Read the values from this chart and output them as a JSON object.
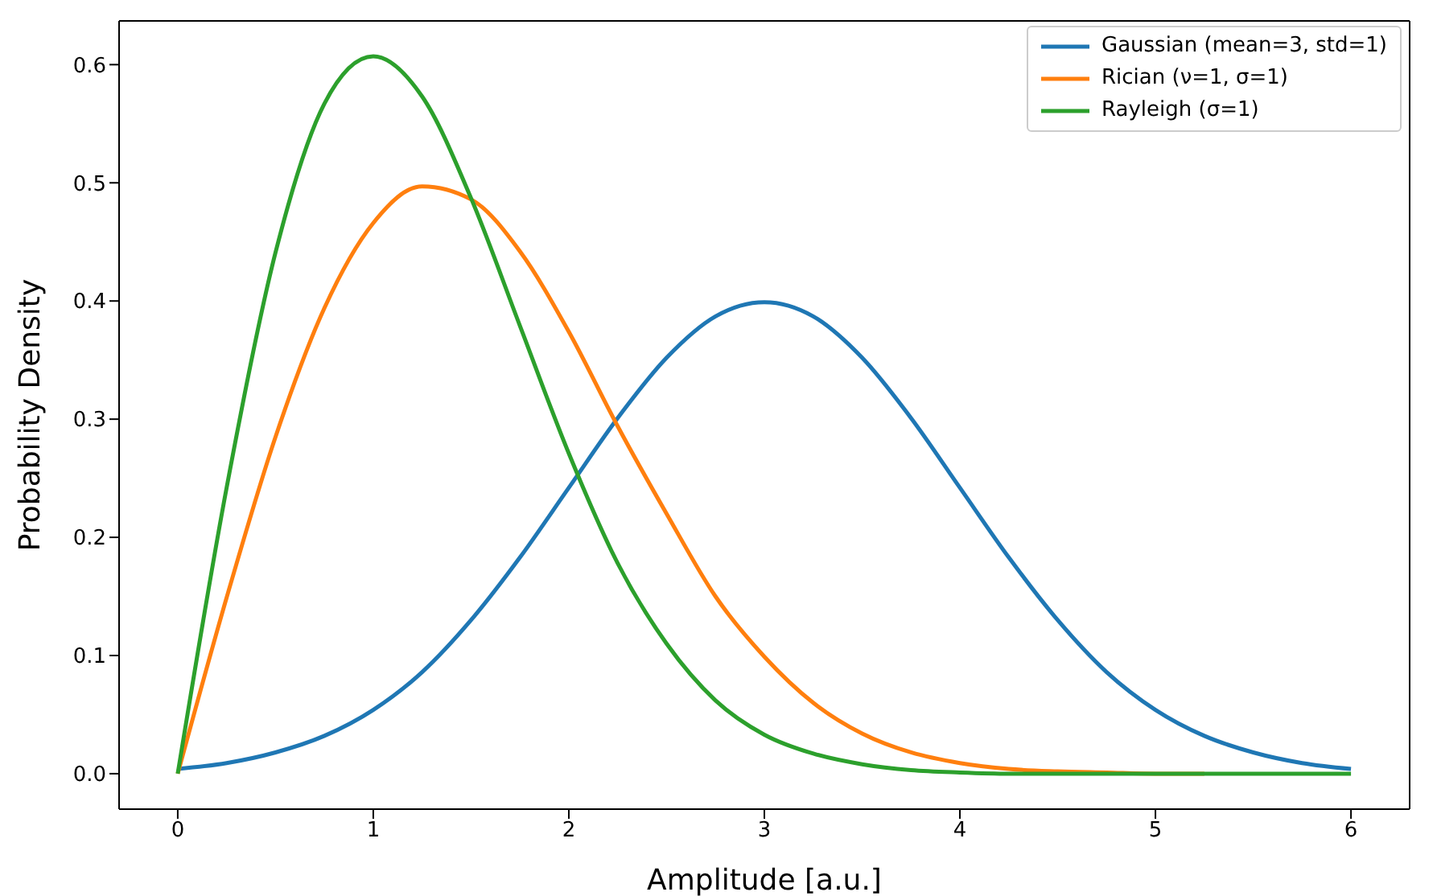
{
  "chart_data": {
    "type": "line",
    "xlabel": "Amplitude [a.u.]",
    "ylabel": "Probability Density",
    "x": [
      0,
      0.25,
      0.5,
      0.75,
      1,
      1.25,
      1.5,
      1.75,
      2,
      2.25,
      2.5,
      2.75,
      3,
      3.25,
      3.5,
      3.75,
      4,
      4.25,
      4.5,
      4.75,
      5,
      5.25,
      5.5,
      5.75,
      6
    ],
    "series": [
      {
        "name": "Gaussian (mean=3, std=1)",
        "color": "#1f77b4",
        "values": [
          0.004,
          0.009,
          0.018,
          0.032,
          0.054,
          0.086,
          0.13,
          0.183,
          0.242,
          0.301,
          0.352,
          0.387,
          0.399,
          0.387,
          0.352,
          0.301,
          0.242,
          0.183,
          0.13,
          0.086,
          0.054,
          0.032,
          0.018,
          0.009,
          0.004
        ]
      },
      {
        "name": "Rician (ν=1, σ=1)",
        "color": "#ff7f0e",
        "values": [
          0,
          0.149,
          0.285,
          0.394,
          0.466,
          0.497,
          0.486,
          0.442,
          0.374,
          0.294,
          0.22,
          0.15,
          0.099,
          0.06,
          0.034,
          0.018,
          0.009,
          0.004,
          0.002,
          0.001,
          0,
          0,
          null,
          null,
          null
        ]
      },
      {
        "name": "Rayleigh (σ=1)",
        "color": "#2ca02c",
        "values": [
          0,
          0.242,
          0.441,
          0.567,
          0.607,
          0.573,
          0.487,
          0.379,
          0.271,
          0.178,
          0.11,
          0.062,
          0.033,
          0.017,
          0.008,
          0.003,
          0.001,
          0,
          0,
          0,
          0,
          0,
          0,
          0,
          0
        ]
      }
    ],
    "xlim": [
      -0.3,
      6.3
    ],
    "xticks": [
      0,
      1,
      2,
      3,
      4,
      5,
      6
    ],
    "ylim": [
      -0.03,
      0.637
    ],
    "yticks": [
      {
        "value": 0,
        "label": "0.0"
      },
      {
        "value": 0.1,
        "label": "0.1"
      },
      {
        "value": 0.2,
        "label": "0.2"
      },
      {
        "value": 0.3,
        "label": "0.3"
      },
      {
        "value": 0.4,
        "label": "0.4"
      },
      {
        "value": 0.5,
        "label": "0.5"
      },
      {
        "value": 0.6,
        "label": "0.6"
      }
    ],
    "legend": "top right",
    "marker": "none",
    "line_style": "solid"
  }
}
